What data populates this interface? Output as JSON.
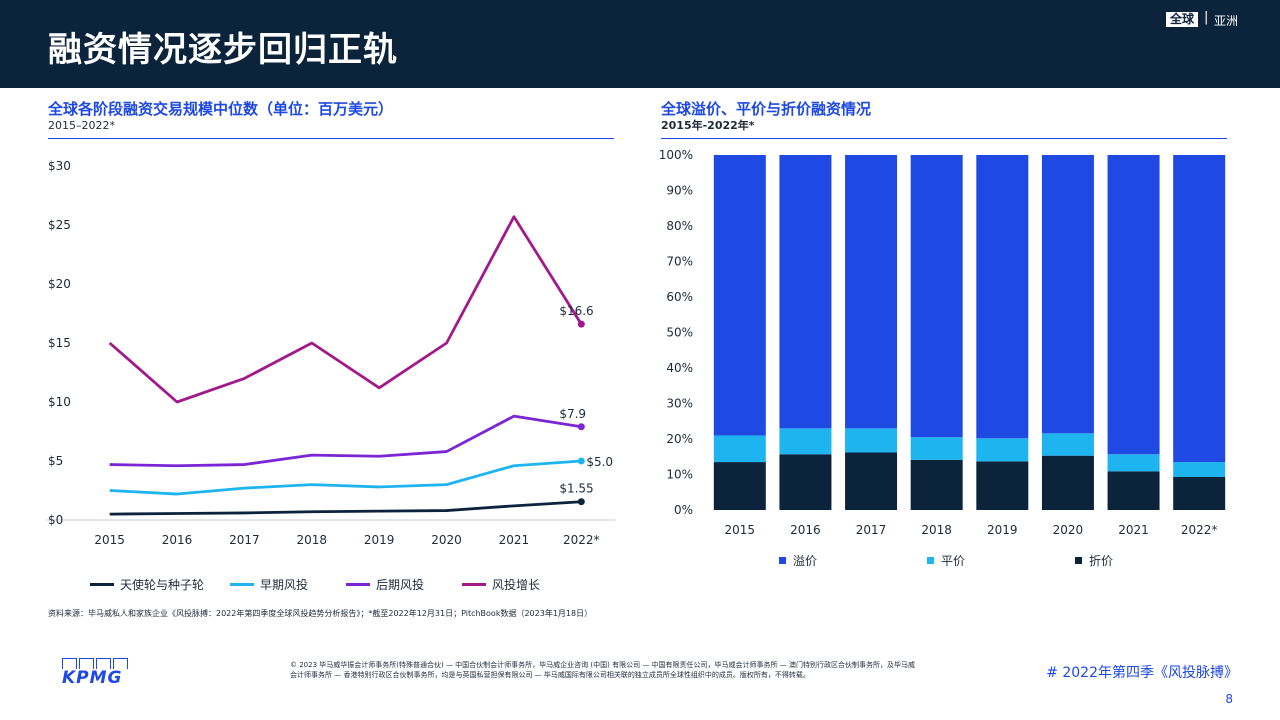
{
  "header": {
    "title": "融资情况逐步回归正轨",
    "badge": "全球",
    "separator": "|",
    "region": "亚洲"
  },
  "left_panel": {
    "title": "全球各阶段融资交易规模中位数（单位：百万美元）",
    "subtitle": "2015–2022*"
  },
  "right_panel": {
    "title": "全球溢价、平价与折价融资情况",
    "subtitle": "2015年-2022年*"
  },
  "chart_data": [
    {
      "type": "line",
      "title": "全球各阶段融资交易规模中位数（单位：百万美元）",
      "subtitle": "2015–2022*",
      "categories": [
        "2015",
        "2016",
        "2017",
        "2018",
        "2019",
        "2020",
        "2021",
        "2022*"
      ],
      "yticks": [
        "$0",
        "$5",
        "$10",
        "$15",
        "$20",
        "$25",
        "$30"
      ],
      "ylim": [
        0,
        30
      ],
      "grid": false,
      "legend_position": "bottom",
      "series": [
        {
          "name": "天使轮与种子轮",
          "color": "#0c233c",
          "values": [
            0.5,
            0.55,
            0.6,
            0.7,
            0.75,
            0.8,
            1.2,
            1.55
          ],
          "end_label": "$1.55"
        },
        {
          "name": "早期风投",
          "color": "#1eb4f0",
          "values": [
            2.5,
            2.2,
            2.7,
            3.0,
            2.8,
            3.0,
            4.6,
            5.0
          ],
          "end_label": "$5.0"
        },
        {
          "name": "后期风投",
          "color": "#7b25d4",
          "values": [
            4.7,
            4.6,
            4.7,
            5.5,
            5.4,
            5.8,
            8.8,
            7.9
          ],
          "end_label": "$7.9"
        },
        {
          "name": "风投增长",
          "color": "#a1198a",
          "values": [
            15.0,
            10.0,
            12.0,
            15.0,
            11.2,
            15.0,
            25.7,
            16.6
          ],
          "end_label": "$16.6"
        }
      ]
    },
    {
      "type": "bar",
      "stacked": true,
      "title": "全球溢价、平价与折价融资情况",
      "subtitle": "2015年-2022年*",
      "categories": [
        "2015",
        "2016",
        "2017",
        "2018",
        "2019",
        "2020",
        "2021",
        "2022*"
      ],
      "yticks": [
        "0%",
        "10%",
        "20%",
        "30%",
        "40%",
        "50%",
        "60%",
        "70%",
        "80%",
        "90%",
        "100%"
      ],
      "ylim": [
        0,
        100
      ],
      "grid": false,
      "legend_position": "bottom",
      "series": [
        {
          "name": "折价",
          "color": "#0c233c",
          "values": [
            13.5,
            15.7,
            16.2,
            14.1,
            13.7,
            15.3,
            10.9,
            9.3
          ]
        },
        {
          "name": "平价",
          "color": "#1eb4f0",
          "values": [
            7.5,
            7.3,
            6.8,
            6.4,
            6.5,
            6.3,
            4.8,
            4.2
          ]
        },
        {
          "name": "溢价",
          "color": "#1e49e2",
          "values": [
            79.0,
            77.0,
            77.0,
            79.5,
            79.8,
            78.4,
            84.3,
            86.5
          ]
        }
      ]
    }
  ],
  "source": "资料来源：毕马威私人和家族企业《风投脉搏：2022年第四季度全球风投趋势分析报告》；*截至2022年12月31日；PitchBook数据（2023年1月18日）",
  "footer": {
    "logo_text": "KPMG",
    "legal": "© 2023 毕马威华振会计师事务所(特殊普通合伙) — 中国合伙制会计师事务所，毕马威企业咨询 (中国) 有限公司 — 中国有限责任公司，毕马威会计师事务所 — 澳门特别行政区合伙制事务所，及毕马威会计师事务所 — 香港特别行政区合伙制事务所，均是与英国私营担保有限公司 — 毕马威国际有限公司相关联的独立成员所全球性组织中的成员。版权所有，不得转载。",
    "right_text": "# 2022年第四季《风投脉搏》",
    "page_number": "8"
  }
}
